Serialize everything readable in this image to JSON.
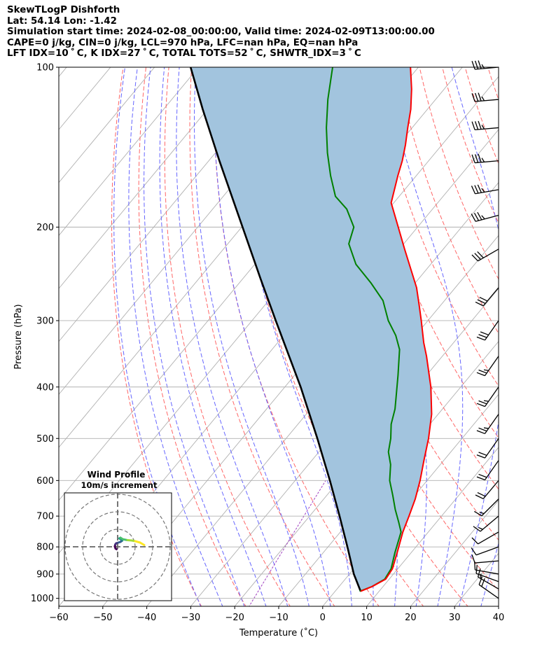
{
  "header": {
    "title": "SkewTLogP Dishforth",
    "location": "Lat: 54.14   Lon: -1.42",
    "times": "Simulation start time: 2024-02-08_00:00:00, Valid time: 2024-02-09T13:00:00.00",
    "indices1": "CAPE=0 j/kg, CIN=0 j/kg, LCL=970 hPa, LFC=nan hPa, EQ=nan hPa",
    "indices2": "LFT IDX=10 ˚ C, K IDX=27 ˚ C, TOTAL TOTS=52 ˚ C, SHWTR_IDX=3 ˚ C"
  },
  "colors": {
    "temperature": "#ff0000",
    "dewpoint": "#008000",
    "parcel": "#000000",
    "shading": "#a2c4de",
    "dry_adiabat": "#ff6666",
    "moist_adiabat": "#6666ff",
    "isotherm": "#b0b0b0",
    "mixing_ratio": "#a040c0"
  },
  "chart_data": [
    {
      "type": "skewt-logp",
      "xlabel": "Temperature (˚C)",
      "ylabel": "Pressure (hPa)",
      "xlim": [
        -60,
        40
      ],
      "ylim": [
        1035,
        100
      ],
      "x_ticks": [
        "−60",
        "−50",
        "−40",
        "−30",
        "−20",
        "−10",
        "0",
        "10",
        "20",
        "30",
        "40"
      ],
      "y_ticks": [
        "100",
        "200",
        "300",
        "400",
        "500",
        "600",
        "700",
        "800",
        "900",
        "1000"
      ],
      "y_scale": "log",
      "grid": true,
      "series": [
        {
          "name": "temperature",
          "pressure": [
            970,
            950,
            920,
            880,
            820,
            750,
            700,
            650,
            600,
            550,
            500,
            450,
            400,
            350,
            330,
            300,
            280,
            260,
            240,
            220,
            200,
            180,
            160,
            150,
            140,
            130,
            120,
            110,
            100
          ],
          "temperature": [
            5.8,
            7.5,
            9.2,
            8.8,
            6.8,
            4.2,
            2.6,
            0.8,
            -1.6,
            -4.5,
            -7.6,
            -11.5,
            -16.8,
            -23.6,
            -26.8,
            -31.5,
            -35.0,
            -38.8,
            -43.6,
            -48.8,
            -54.4,
            -60.6,
            -64.2,
            -66.0,
            -68.3,
            -71.0,
            -73.8,
            -77.4,
            -81.8
          ]
        },
        {
          "name": "dewpoint",
          "pressure": [
            970,
            950,
            920,
            880,
            820,
            750,
            720,
            680,
            640,
            600,
            560,
            530,
            500,
            470,
            440,
            420,
            380,
            340,
            320,
            300,
            275,
            255,
            235,
            215,
            200,
            185,
            175,
            160,
            145,
            130,
            115,
            100
          ],
          "temperature": [
            5.6,
            7.5,
            9.0,
            8.5,
            6.3,
            3.8,
            1.5,
            -1.8,
            -5.0,
            -8.5,
            -11.3,
            -14.2,
            -16.2,
            -18.8,
            -20.8,
            -22.6,
            -26.5,
            -31.0,
            -34.5,
            -39.0,
            -44.0,
            -50.0,
            -57.0,
            -62.5,
            -64.5,
            -69.5,
            -74.5,
            -79.5,
            -84.5,
            -89.5,
            -94.5,
            -99.5
          ]
        },
        {
          "name": "parcel",
          "pressure": [
            970,
            900,
            800,
            700,
            600,
            500,
            400,
            300,
            250,
            200,
            150,
            120,
            100
          ],
          "temperature": [
            5.8,
            1.0,
            -5.6,
            -13.2,
            -22.1,
            -32.9,
            -46.4,
            -64.6,
            -76.0,
            -89.8,
            -107.6,
            -121.1,
            -131.8
          ]
        }
      ],
      "shaded_area": "cape_cin",
      "background_lines": [
        "isotherms",
        "dry_adiabats",
        "moist_adiabats",
        "mixing_ratio"
      ],
      "wind_barbs": {
        "pressure": [
          1000,
          960,
          930,
          900,
          850,
          800,
          750,
          700,
          650,
          600,
          550,
          500,
          450,
          400,
          350,
          300,
          260,
          220,
          190,
          170,
          150,
          130,
          115,
          100
        ],
        "direction": [
          305,
          300,
          290,
          280,
          265,
          250,
          240,
          230,
          225,
          220,
          215,
          215,
          215,
          215,
          215,
          215,
          220,
          240,
          255,
          260,
          265,
          265,
          265,
          265
        ],
        "speed": [
          18,
          14,
          11,
          9,
          8,
          9,
          11,
          14,
          16,
          18,
          20,
          22,
          23,
          24,
          26,
          28,
          30,
          32,
          34,
          35,
          36,
          36,
          36,
          36
        ]
      }
    },
    {
      "type": "hodograph",
      "title": "Wind Profile",
      "subtitle": "10m/s increment",
      "ring_increment": 10,
      "u": [
        -0.6,
        -1.2,
        -1.6,
        -1.3,
        -0.8,
        0.4,
        1.6,
        2.6,
        2.2,
        1.4,
        1.0,
        1.6,
        3.0,
        5.6,
        8.0,
        10.0,
        12.8,
        15.2
      ],
      "v": [
        -1.4,
        -1.0,
        0.2,
        1.4,
        2.0,
        2.4,
        2.8,
        3.5,
        4.1,
        4.5,
        4.8,
        5.2,
        4.3,
        3.8,
        3.6,
        3.2,
        2.4,
        1.0
      ],
      "colormap": "viridis"
    }
  ]
}
